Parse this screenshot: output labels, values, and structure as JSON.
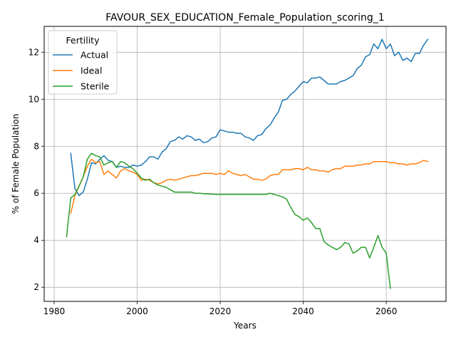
{
  "chart_data": {
    "type": "line",
    "title": "FAVOUR_SEX_EDUCATION_Female_Population_scoring_1",
    "xlabel": "Years",
    "ylabel": "% of Female Population",
    "xlim": [
      1977.6,
      1974.4
    ],
    "ylim": [
      1.4,
      13.1
    ],
    "grid": true,
    "x_ticks": [
      1980,
      2000,
      2020,
      2040,
      2060
    ],
    "y_ticks": [
      2,
      4,
      6,
      8,
      10,
      12
    ],
    "legend": {
      "title": "Fertility",
      "placement": "top-left"
    },
    "series": [
      {
        "name": "Actual",
        "color": "#1f77b4",
        "points": [
          [
            1984,
            7.7
          ],
          [
            1985,
            6.2
          ],
          [
            1986,
            5.9
          ],
          [
            1987,
            6.05
          ],
          [
            1988,
            6.6
          ],
          [
            1989,
            7.3
          ],
          [
            1990,
            7.25
          ],
          [
            1991,
            7.45
          ],
          [
            1992,
            7.6
          ],
          [
            1993,
            7.4
          ],
          [
            1994,
            7.35
          ],
          [
            1995,
            7.1
          ],
          [
            1996,
            7.15
          ],
          [
            1997,
            7.1
          ],
          [
            1998,
            7.1
          ],
          [
            1999,
            7.2
          ],
          [
            2000,
            7.15
          ],
          [
            2001,
            7.2
          ],
          [
            2002,
            7.35
          ],
          [
            2003,
            7.55
          ],
          [
            2004,
            7.55
          ],
          [
            2005,
            7.45
          ],
          [
            2006,
            7.75
          ],
          [
            2007,
            7.9
          ],
          [
            2008,
            8.2
          ],
          [
            2009,
            8.25
          ],
          [
            2010,
            8.4
          ],
          [
            2011,
            8.3
          ],
          [
            2012,
            8.45
          ],
          [
            2013,
            8.4
          ],
          [
            2014,
            8.25
          ],
          [
            2015,
            8.3
          ],
          [
            2016,
            8.15
          ],
          [
            2017,
            8.2
          ],
          [
            2018,
            8.35
          ],
          [
            2019,
            8.4
          ],
          [
            2020,
            8.7
          ],
          [
            2021,
            8.65
          ],
          [
            2022,
            8.6
          ],
          [
            2023,
            8.6
          ],
          [
            2024,
            8.55
          ],
          [
            2025,
            8.55
          ],
          [
            2026,
            8.4
          ],
          [
            2027,
            8.35
          ],
          [
            2028,
            8.25
          ],
          [
            2029,
            8.45
          ],
          [
            2030,
            8.5
          ],
          [
            2031,
            8.75
          ],
          [
            2032,
            8.9
          ],
          [
            2033,
            9.2
          ],
          [
            2034,
            9.45
          ],
          [
            2035,
            9.95
          ],
          [
            2036,
            10.0
          ],
          [
            2037,
            10.2
          ],
          [
            2038,
            10.35
          ],
          [
            2039,
            10.55
          ],
          [
            2040,
            10.75
          ],
          [
            2041,
            10.7
          ],
          [
            2042,
            10.9
          ],
          [
            2043,
            10.9
          ],
          [
            2044,
            10.95
          ],
          [
            2045,
            10.8
          ],
          [
            2046,
            10.65
          ],
          [
            2047,
            10.65
          ],
          [
            2048,
            10.65
          ],
          [
            2049,
            10.75
          ],
          [
            2050,
            10.8
          ],
          [
            2051,
            10.9
          ],
          [
            2052,
            11.0
          ],
          [
            2053,
            11.3
          ],
          [
            2054,
            11.45
          ],
          [
            2055,
            11.8
          ],
          [
            2056,
            11.9
          ],
          [
            2057,
            12.35
          ],
          [
            2058,
            12.15
          ],
          [
            2059,
            12.55
          ],
          [
            2060,
            12.15
          ],
          [
            2061,
            12.35
          ],
          [
            2062,
            11.85
          ],
          [
            2063,
            12.0
          ],
          [
            2064,
            11.65
          ],
          [
            2065,
            11.75
          ],
          [
            2066,
            11.6
          ],
          [
            2067,
            11.95
          ],
          [
            2068,
            11.95
          ],
          [
            2069,
            12.3
          ],
          [
            2070,
            12.55
          ]
        ]
      },
      {
        "name": "Ideal",
        "color": "#ff7f0e",
        "points": [
          [
            1984,
            5.15
          ],
          [
            1985,
            5.9
          ],
          [
            1986,
            6.3
          ],
          [
            1987,
            6.7
          ],
          [
            1988,
            7.15
          ],
          [
            1989,
            7.45
          ],
          [
            1990,
            7.3
          ],
          [
            1991,
            7.35
          ],
          [
            1992,
            6.8
          ],
          [
            1993,
            6.95
          ],
          [
            1994,
            6.8
          ],
          [
            1995,
            6.65
          ],
          [
            1996,
            6.95
          ],
          [
            1997,
            7.05
          ],
          [
            1998,
            6.95
          ],
          [
            1999,
            6.9
          ],
          [
            2000,
            6.8
          ],
          [
            2001,
            6.55
          ],
          [
            2002,
            6.6
          ],
          [
            2003,
            6.55
          ],
          [
            2004,
            6.45
          ],
          [
            2005,
            6.4
          ],
          [
            2006,
            6.45
          ],
          [
            2007,
            6.55
          ],
          [
            2008,
            6.6
          ],
          [
            2009,
            6.55
          ],
          [
            2010,
            6.6
          ],
          [
            2011,
            6.65
          ],
          [
            2012,
            6.7
          ],
          [
            2013,
            6.75
          ],
          [
            2014,
            6.75
          ],
          [
            2015,
            6.8
          ],
          [
            2016,
            6.85
          ],
          [
            2017,
            6.85
          ],
          [
            2018,
            6.85
          ],
          [
            2019,
            6.8
          ],
          [
            2020,
            6.85
          ],
          [
            2021,
            6.8
          ],
          [
            2022,
            6.95
          ],
          [
            2023,
            6.85
          ],
          [
            2024,
            6.8
          ],
          [
            2025,
            6.75
          ],
          [
            2026,
            6.8
          ],
          [
            2027,
            6.7
          ],
          [
            2028,
            6.6
          ],
          [
            2029,
            6.6
          ],
          [
            2030,
            6.55
          ],
          [
            2031,
            6.6
          ],
          [
            2032,
            6.75
          ],
          [
            2033,
            6.8
          ],
          [
            2034,
            6.8
          ],
          [
            2035,
            7.0
          ],
          [
            2036,
            7.0
          ],
          [
            2037,
            7.0
          ],
          [
            2038,
            7.05
          ],
          [
            2039,
            7.05
          ],
          [
            2040,
            7.0
          ],
          [
            2041,
            7.1
          ],
          [
            2042,
            7.0
          ],
          [
            2043,
            7.0
          ],
          [
            2044,
            6.95
          ],
          [
            2045,
            6.95
          ],
          [
            2046,
            6.9
          ],
          [
            2047,
            7.0
          ],
          [
            2048,
            7.05
          ],
          [
            2049,
            7.05
          ],
          [
            2050,
            7.15
          ],
          [
            2051,
            7.15
          ],
          [
            2052,
            7.15
          ],
          [
            2053,
            7.2
          ],
          [
            2054,
            7.2
          ],
          [
            2055,
            7.25
          ],
          [
            2056,
            7.25
          ],
          [
            2057,
            7.35
          ],
          [
            2058,
            7.35
          ],
          [
            2059,
            7.35
          ],
          [
            2060,
            7.35
          ],
          [
            2061,
            7.3
          ],
          [
            2062,
            7.3
          ],
          [
            2063,
            7.25
          ],
          [
            2064,
            7.25
          ],
          [
            2065,
            7.2
          ],
          [
            2066,
            7.25
          ],
          [
            2067,
            7.25
          ],
          [
            2068,
            7.3
          ],
          [
            2069,
            7.4
          ],
          [
            2070,
            7.35
          ]
        ]
      },
      {
        "name": "Sterile",
        "color": "#2ca02c",
        "points": [
          [
            1983,
            4.15
          ],
          [
            1984,
            5.8
          ],
          [
            1985,
            5.95
          ],
          [
            1986,
            6.3
          ],
          [
            1987,
            6.7
          ],
          [
            1988,
            7.45
          ],
          [
            1989,
            7.7
          ],
          [
            1990,
            7.6
          ],
          [
            1991,
            7.55
          ],
          [
            1992,
            7.2
          ],
          [
            1993,
            7.3
          ],
          [
            1994,
            7.35
          ],
          [
            1995,
            7.1
          ],
          [
            1996,
            7.35
          ],
          [
            1997,
            7.3
          ],
          [
            1998,
            7.15
          ],
          [
            1999,
            7.05
          ],
          [
            2000,
            6.85
          ],
          [
            2001,
            6.65
          ],
          [
            2002,
            6.55
          ],
          [
            2003,
            6.6
          ],
          [
            2004,
            6.45
          ],
          [
            2005,
            6.35
          ],
          [
            2006,
            6.3
          ],
          [
            2007,
            6.25
          ],
          [
            2008,
            6.15
          ],
          [
            2009,
            6.05
          ],
          [
            2010,
            6.05
          ],
          [
            2011,
            6.05
          ],
          [
            2012,
            6.05
          ],
          [
            2013,
            6.05
          ],
          [
            2014,
            6.0
          ],
          [
            2015,
            6.0
          ],
          [
            2016,
            5.98
          ],
          [
            2017,
            5.97
          ],
          [
            2018,
            5.96
          ],
          [
            2019,
            5.95
          ],
          [
            2020,
            5.95
          ],
          [
            2021,
            5.95
          ],
          [
            2022,
            5.95
          ],
          [
            2023,
            5.95
          ],
          [
            2024,
            5.95
          ],
          [
            2025,
            5.95
          ],
          [
            2026,
            5.95
          ],
          [
            2027,
            5.95
          ],
          [
            2028,
            5.95
          ],
          [
            2029,
            5.95
          ],
          [
            2030,
            5.95
          ],
          [
            2031,
            5.95
          ],
          [
            2032,
            6.0
          ],
          [
            2033,
            5.95
          ],
          [
            2034,
            5.9
          ],
          [
            2035,
            5.85
          ],
          [
            2036,
            5.75
          ],
          [
            2037,
            5.4
          ],
          [
            2038,
            5.1
          ],
          [
            2039,
            5.0
          ],
          [
            2040,
            4.85
          ],
          [
            2041,
            4.95
          ],
          [
            2042,
            4.75
          ],
          [
            2043,
            4.5
          ],
          [
            2044,
            4.5
          ],
          [
            2045,
            3.95
          ],
          [
            2046,
            3.8
          ],
          [
            2047,
            3.7
          ],
          [
            2048,
            3.6
          ],
          [
            2049,
            3.7
          ],
          [
            2050,
            3.9
          ],
          [
            2051,
            3.85
          ],
          [
            2052,
            3.45
          ],
          [
            2053,
            3.55
          ],
          [
            2054,
            3.7
          ],
          [
            2055,
            3.7
          ],
          [
            2056,
            3.25
          ],
          [
            2057,
            3.7
          ],
          [
            2058,
            4.2
          ],
          [
            2059,
            3.7
          ],
          [
            2060,
            3.45
          ],
          [
            2061,
            1.95
          ]
        ]
      }
    ]
  }
}
